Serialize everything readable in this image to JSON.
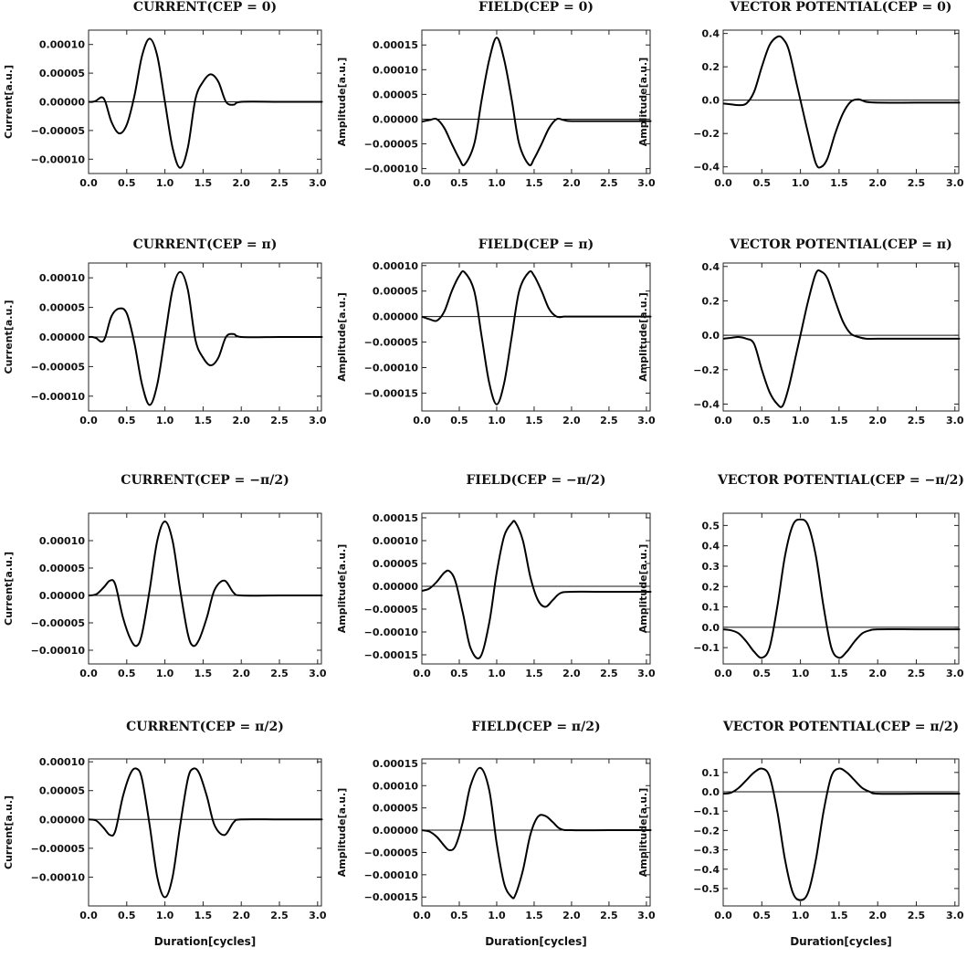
{
  "figure": {
    "xlabel": "Duration[cycles]"
  },
  "chart_data": [
    {
      "type": "line",
      "id": "current-cep-0",
      "title": "CURRENT(CEP = 0)",
      "ylabel": "Current[a.u.]",
      "xlim": [
        0,
        3.05
      ],
      "ylim": [
        -0.000125,
        0.000125
      ],
      "yticks": [
        "0.00010",
        "0.00005",
        "0.00000",
        "−0.00005",
        "−0.00010"
      ],
      "ytick_values": [
        0.0001,
        5e-05,
        0,
        -5e-05,
        -0.0001
      ],
      "xticks": [
        "0.0",
        "0.5",
        "1.0",
        "1.5",
        "2.0",
        "2.5",
        "3.0"
      ],
      "series": [
        {
          "x": [
            0,
            0.05,
            0.1,
            0.17,
            0.22,
            0.3,
            0.4,
            0.5,
            0.6,
            0.7,
            0.8,
            0.9,
            1.0,
            1.1,
            1.2,
            1.3,
            1.4,
            1.5,
            1.6,
            1.7,
            1.8,
            1.9,
            2.0,
            2.5,
            3.0,
            3.05
          ],
          "y": [
            0,
            0,
            2e-06,
            8e-06,
            0,
            -3.5e-05,
            -5.5e-05,
            -4e-05,
            1e-05,
            8e-05,
            0.00011,
            8e-05,
            0,
            -8e-05,
            -0.000115,
            -8e-05,
            5e-06,
            3.5e-05,
            4.8e-05,
            3.5e-05,
            0,
            -5e-06,
            0,
            0,
            0,
            0
          ]
        }
      ]
    },
    {
      "type": "line",
      "id": "field-cep-0",
      "title": "FIELD(CEP = 0)",
      "ylabel": "Amplitude[a.u.]",
      "xlim": [
        0,
        3.05
      ],
      "ylim": [
        -0.00011,
        0.00018
      ],
      "yticks": [
        "0.00015",
        "0.00010",
        "0.00005",
        "0.00000",
        "−0.00005",
        "−0.00010"
      ],
      "ytick_values": [
        0.00015,
        0.0001,
        5e-05,
        0,
        -5e-05,
        -0.0001
      ],
      "xticks": [
        "0.0",
        "0.5",
        "1.0",
        "1.5",
        "2.0",
        "2.5",
        "3.0"
      ],
      "series": [
        {
          "x": [
            0,
            0.1,
            0.2,
            0.3,
            0.4,
            0.5,
            0.57,
            0.7,
            0.8,
            0.9,
            1.0,
            1.1,
            1.2,
            1.3,
            1.43,
            1.5,
            1.6,
            1.7,
            1.8,
            1.9,
            2.0,
            2.5,
            3.0,
            3.05
          ],
          "y": [
            -5e-06,
            -2e-06,
            0,
            -1.8e-05,
            -5e-05,
            -8e-05,
            -9.2e-05,
            -5e-05,
            4e-05,
            0.00012,
            0.000165,
            0.00012,
            4e-05,
            -5e-05,
            -9.2e-05,
            -8e-05,
            -5e-05,
            -1.8e-05,
            0,
            -2e-06,
            -4e-06,
            -4e-06,
            -4e-06,
            -4e-06
          ]
        }
      ]
    },
    {
      "type": "line",
      "id": "vector-potential-cep-0",
      "title": "VECTOR POTENTIAL(CEP = 0)",
      "ylabel": "Amplitude[a.u.]",
      "xlim": [
        0,
        3.05
      ],
      "ylim": [
        -0.44,
        0.42
      ],
      "yticks": [
        "0.4",
        "0.2",
        "0.0",
        "−0.2",
        "−0.4"
      ],
      "ytick_values": [
        0.4,
        0.2,
        0,
        -0.2,
        -0.4
      ],
      "xticks": [
        "0.0",
        "0.5",
        "1.0",
        "1.5",
        "2.0",
        "2.5",
        "3.0"
      ],
      "series": [
        {
          "x": [
            0,
            0.1,
            0.2,
            0.3,
            0.4,
            0.5,
            0.6,
            0.7,
            0.77,
            0.85,
            0.95,
            1.0,
            1.1,
            1.2,
            1.27,
            1.35,
            1.45,
            1.55,
            1.65,
            1.75,
            1.85,
            2.0,
            2.5,
            3.0,
            3.05
          ],
          "y": [
            -0.02,
            -0.025,
            -0.03,
            -0.02,
            0.05,
            0.2,
            0.33,
            0.38,
            0.37,
            0.3,
            0.1,
            0,
            -0.2,
            -0.38,
            -0.4,
            -0.35,
            -0.2,
            -0.08,
            -0.01,
            0.005,
            -0.01,
            -0.015,
            -0.015,
            -0.015,
            -0.015
          ]
        }
      ]
    },
    {
      "type": "line",
      "id": "current-cep-pi",
      "title": "CURRENT(CEP = π)",
      "ylabel": "Current[a.u.]",
      "xlim": [
        0,
        3.05
      ],
      "ylim": [
        -0.000125,
        0.000125
      ],
      "yticks": [
        "0.00010",
        "0.00005",
        "0.00000",
        "−0.00005",
        "−0.00010"
      ],
      "ytick_values": [
        0.0001,
        5e-05,
        0,
        -5e-05,
        -0.0001
      ],
      "xticks": [
        "0.0",
        "0.5",
        "1.0",
        "1.5",
        "2.0",
        "2.5",
        "3.0"
      ],
      "series": [
        {
          "x": [
            0,
            0.05,
            0.1,
            0.17,
            0.22,
            0.3,
            0.4,
            0.5,
            0.6,
            0.7,
            0.8,
            0.9,
            1.0,
            1.1,
            1.2,
            1.3,
            1.4,
            1.5,
            1.6,
            1.7,
            1.8,
            1.9,
            2.0,
            2.5,
            3.0,
            3.05
          ],
          "y": [
            0,
            0,
            -2e-06,
            -8e-06,
            0,
            3.5e-05,
            4.8e-05,
            4e-05,
            -1e-05,
            -8e-05,
            -0.000115,
            -8e-05,
            0,
            8e-05,
            0.00011,
            8e-05,
            -5e-06,
            -3.5e-05,
            -4.8e-05,
            -3.5e-05,
            0,
            5e-06,
            0,
            0,
            0,
            0
          ]
        }
      ]
    },
    {
      "type": "line",
      "id": "field-cep-pi",
      "title": "FIELD(CEP = π)",
      "ylabel": "Amplitude[a.u.]",
      "xlim": [
        0,
        3.05
      ],
      "ylim": [
        -0.000185,
        0.000105
      ],
      "yticks": [
        "0.00010",
        "0.00005",
        "0.00000",
        "−0.00005",
        "−0.00010",
        "−0.00015"
      ],
      "ytick_values": [
        0.0001,
        5e-05,
        0,
        -5e-05,
        -0.0001,
        -0.00015
      ],
      "xticks": [
        "0.0",
        "0.5",
        "1.0",
        "1.5",
        "2.0",
        "2.5",
        "3.0"
      ],
      "series": [
        {
          "x": [
            0,
            0.1,
            0.2,
            0.3,
            0.4,
            0.5,
            0.57,
            0.7,
            0.8,
            0.9,
            1.0,
            1.1,
            1.2,
            1.3,
            1.43,
            1.5,
            1.6,
            1.7,
            1.8,
            1.9,
            2.0,
            2.5,
            3.0,
            3.05
          ],
          "y": [
            0,
            -5e-06,
            -8e-06,
            1e-05,
            5e-05,
            8e-05,
            8.7e-05,
            5e-05,
            -4e-05,
            -0.00013,
            -0.000172,
            -0.00013,
            -4e-05,
            5e-05,
            8.7e-05,
            8e-05,
            5e-05,
            1.5e-05,
            0,
            0,
            0,
            0,
            0,
            0
          ]
        }
      ]
    },
    {
      "type": "line",
      "id": "vector-potential-cep-pi",
      "title": "VECTOR POTENTIAL(CEP = π)",
      "ylabel": "Amplitude[a.u.]",
      "xlim": [
        0,
        3.05
      ],
      "ylim": [
        -0.44,
        0.42
      ],
      "yticks": [
        "0.4",
        "0.2",
        "0.0",
        "−0.2",
        "−0.4"
      ],
      "ytick_values": [
        0.4,
        0.2,
        0,
        -0.2,
        -0.4
      ],
      "xticks": [
        "0.0",
        "0.5",
        "1.0",
        "1.5",
        "2.0",
        "2.5",
        "3.0"
      ],
      "series": [
        {
          "x": [
            0,
            0.1,
            0.2,
            0.3,
            0.4,
            0.5,
            0.6,
            0.7,
            0.77,
            0.85,
            0.95,
            1.0,
            1.1,
            1.2,
            1.27,
            1.35,
            1.45,
            1.55,
            1.65,
            1.75,
            1.85,
            2.0,
            2.5,
            3.0,
            3.05
          ],
          "y": [
            -0.02,
            -0.015,
            -0.01,
            -0.02,
            -0.05,
            -0.2,
            -0.33,
            -0.4,
            -0.41,
            -0.3,
            -0.1,
            0,
            0.2,
            0.36,
            0.37,
            0.33,
            0.2,
            0.08,
            0.01,
            -0.01,
            -0.02,
            -0.02,
            -0.02,
            -0.02,
            -0.02
          ]
        }
      ]
    },
    {
      "type": "line",
      "id": "current-cep-minus-pi-2",
      "title": "CURRENT(CEP = −π/2)",
      "ylabel": "Current[a.u.]",
      "xlim": [
        0,
        3.05
      ],
      "ylim": [
        -0.000125,
        0.00015
      ],
      "yticks": [
        "0.00010",
        "0.00005",
        "0.00000",
        "−0.00005",
        "−0.00010"
      ],
      "ytick_values": [
        0.0001,
        5e-05,
        0,
        -5e-05,
        -0.0001
      ],
      "xticks": [
        "0.0",
        "0.5",
        "1.0",
        "1.5",
        "2.0",
        "2.5",
        "3.0"
      ],
      "series": [
        {
          "x": [
            0,
            0.1,
            0.2,
            0.28,
            0.35,
            0.45,
            0.55,
            0.63,
            0.7,
            0.8,
            0.9,
            1.0,
            1.1,
            1.2,
            1.3,
            1.37,
            1.45,
            1.55,
            1.65,
            1.78,
            1.9,
            2.0,
            2.5,
            3.0,
            3.05
          ],
          "y": [
            0,
            2e-06,
            1.5e-05,
            2.7e-05,
            2e-05,
            -4e-05,
            -8e-05,
            -9.2e-05,
            -7e-05,
            1e-05,
            0.0001,
            0.000135,
            0.0001,
            1e-05,
            -7e-05,
            -9.2e-05,
            -8e-05,
            -4e-05,
            1e-05,
            2.7e-05,
            5e-06,
            0,
            0,
            0,
            0
          ]
        }
      ]
    },
    {
      "type": "line",
      "id": "field-cep-minus-pi-2",
      "title": "FIELD(CEP = −π/2)",
      "ylabel": "Amplitude[a.u.]",
      "xlim": [
        0,
        3.05
      ],
      "ylim": [
        -0.00017,
        0.00016
      ],
      "yticks": [
        "0.00015",
        "0.00010",
        "0.00005",
        "0.00000",
        "−0.00005",
        "−0.00010",
        "−0.00015"
      ],
      "ytick_values": [
        0.00015,
        0.0001,
        5e-05,
        0,
        -5e-05,
        -0.0001,
        -0.00015
      ],
      "xticks": [
        "0.0",
        "0.5",
        "1.0",
        "1.5",
        "2.0",
        "2.5",
        "3.0"
      ],
      "series": [
        {
          "x": [
            0,
            0.1,
            0.2,
            0.3,
            0.37,
            0.45,
            0.55,
            0.65,
            0.78,
            0.9,
            1.0,
            1.1,
            1.2,
            1.25,
            1.35,
            1.45,
            1.55,
            1.65,
            1.75,
            1.85,
            2.0,
            2.5,
            3.0,
            3.05
          ],
          "y": [
            -1e-05,
            -5e-06,
            1e-05,
            3e-05,
            3.3e-05,
            1e-05,
            -6e-05,
            -0.000135,
            -0.000155,
            -8e-05,
            3e-05,
            0.00011,
            0.000138,
            0.00014,
            0.0001,
            2e-05,
            -3e-05,
            -4.5e-05,
            -3e-05,
            -1.5e-05,
            -1.2e-05,
            -1.2e-05,
            -1.2e-05,
            -1.2e-05
          ]
        }
      ]
    },
    {
      "type": "line",
      "id": "vector-potential-cep-minus-pi-2",
      "title": "VECTOR POTENTIAL(CEP = −π/2)",
      "ylabel": "Amplitude[a.u.]",
      "xlim": [
        0,
        3.05
      ],
      "ylim": [
        -0.18,
        0.56
      ],
      "yticks": [
        "0.5",
        "0.4",
        "0.3",
        "0.2",
        "0.1",
        "0.0",
        "−0.1"
      ],
      "ytick_values": [
        0.5,
        0.4,
        0.3,
        0.2,
        0.1,
        0,
        -0.1
      ],
      "xticks": [
        "0.0",
        "0.5",
        "1.0",
        "1.5",
        "2.0",
        "2.5",
        "3.0"
      ],
      "series": [
        {
          "x": [
            0,
            0.1,
            0.2,
            0.3,
            0.4,
            0.5,
            0.6,
            0.7,
            0.8,
            0.9,
            1.0,
            1.1,
            1.2,
            1.3,
            1.4,
            1.5,
            1.6,
            1.7,
            1.8,
            1.9,
            2.0,
            2.5,
            3.0,
            3.05
          ],
          "y": [
            -0.01,
            -0.015,
            -0.03,
            -0.07,
            -0.12,
            -0.15,
            -0.1,
            0.1,
            0.35,
            0.5,
            0.53,
            0.5,
            0.35,
            0.1,
            -0.1,
            -0.15,
            -0.12,
            -0.07,
            -0.03,
            -0.015,
            -0.01,
            -0.01,
            -0.01,
            -0.01
          ]
        }
      ]
    },
    {
      "type": "line",
      "id": "current-cep-pi-2",
      "title": "CURRENT(CEP = π/2)",
      "ylabel": "Current[a.u.]",
      "xlim": [
        0,
        3.05
      ],
      "ylim": [
        -0.00015,
        0.000105
      ],
      "yticks": [
        "0.00010",
        "0.00005",
        "0.00000",
        "−0.00005",
        "−0.00010"
      ],
      "ytick_values": [
        0.0001,
        5e-05,
        0,
        -5e-05,
        -0.0001
      ],
      "xticks": [
        "0.0",
        "0.5",
        "1.0",
        "1.5",
        "2.0",
        "2.5",
        "3.0"
      ],
      "series": [
        {
          "x": [
            0,
            0.1,
            0.2,
            0.28,
            0.35,
            0.45,
            0.55,
            0.63,
            0.7,
            0.8,
            0.9,
            1.0,
            1.1,
            1.2,
            1.3,
            1.37,
            1.45,
            1.55,
            1.65,
            1.78,
            1.9,
            2.0,
            2.5,
            3.0,
            3.05
          ],
          "y": [
            0,
            -2e-06,
            -1.5e-05,
            -2.7e-05,
            -2e-05,
            4e-05,
            8e-05,
            8.8e-05,
            7e-05,
            -1e-05,
            -0.0001,
            -0.000135,
            -0.0001,
            -1e-05,
            7e-05,
            8.8e-05,
            8e-05,
            4e-05,
            -1e-05,
            -2.7e-05,
            -5e-06,
            0,
            0,
            0,
            0
          ]
        }
      ]
    },
    {
      "type": "line",
      "id": "field-cep-pi-2",
      "title": "FIELD(CEP = π/2)",
      "ylabel": "Amplitude[a.u.]",
      "xlim": [
        0,
        3.05
      ],
      "ylim": [
        -0.00017,
        0.00016
      ],
      "yticks": [
        "0.00015",
        "0.00010",
        "0.00005",
        "0.00000",
        "−0.00005",
        "−0.00010",
        "−0.00015"
      ],
      "ytick_values": [
        0.00015,
        0.0001,
        5e-05,
        0,
        -5e-05,
        -0.0001,
        -0.00015
      ],
      "xticks": [
        "0.0",
        "0.5",
        "1.0",
        "1.5",
        "2.0",
        "2.5",
        "3.0"
      ],
      "series": [
        {
          "x": [
            0,
            0.1,
            0.2,
            0.3,
            0.37,
            0.45,
            0.55,
            0.65,
            0.78,
            0.9,
            1.0,
            1.1,
            1.2,
            1.25,
            1.35,
            1.45,
            1.55,
            1.65,
            1.75,
            1.85,
            2.0,
            2.5,
            3.0,
            3.05
          ],
          "y": [
            0,
            -3e-06,
            -1.5e-05,
            -3.5e-05,
            -4.5e-05,
            -3.5e-05,
            2e-05,
            0.0001,
            0.00014,
            9e-05,
            -3e-05,
            -0.00012,
            -0.00015,
            -0.000145,
            -9e-05,
            -1e-05,
            3e-05,
            3.2e-05,
            1.8e-05,
            3e-06,
            0,
            0,
            0,
            0
          ]
        }
      ]
    },
    {
      "type": "line",
      "id": "vector-potential-cep-pi-2",
      "title": "VECTOR POTENTIAL(CEP = π/2)",
      "ylabel": "Amplitude[a.u.]",
      "xlim": [
        0,
        3.05
      ],
      "ylim": [
        -0.59,
        0.17
      ],
      "yticks": [
        "0.1",
        "0.0",
        "−0.1",
        "−0.2",
        "−0.3",
        "−0.4",
        "−0.5"
      ],
      "ytick_values": [
        0.1,
        0,
        -0.1,
        -0.2,
        -0.3,
        -0.4,
        -0.5
      ],
      "xticks": [
        "0.0",
        "0.5",
        "1.0",
        "1.5",
        "2.0",
        "2.5",
        "3.0"
      ],
      "series": [
        {
          "x": [
            0,
            0.1,
            0.2,
            0.3,
            0.4,
            0.5,
            0.6,
            0.7,
            0.8,
            0.9,
            1.0,
            1.1,
            1.2,
            1.3,
            1.4,
            1.5,
            1.6,
            1.7,
            1.8,
            1.9,
            2.0,
            2.5,
            3.0,
            3.05
          ],
          "y": [
            -0.01,
            -0.005,
            0.02,
            0.06,
            0.1,
            0.12,
            0.08,
            -0.1,
            -0.35,
            -0.52,
            -0.56,
            -0.52,
            -0.35,
            -0.1,
            0.08,
            0.12,
            0.1,
            0.06,
            0.02,
            0,
            -0.01,
            -0.01,
            -0.01,
            -0.01
          ]
        }
      ]
    }
  ]
}
